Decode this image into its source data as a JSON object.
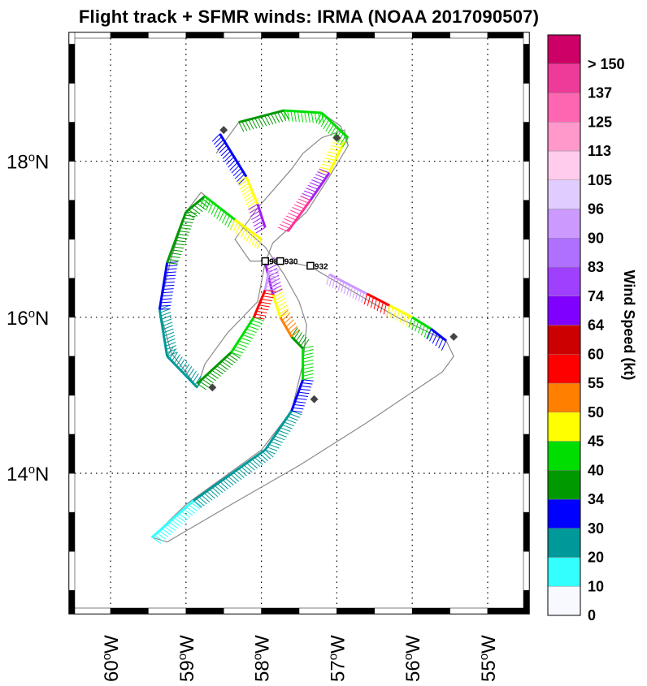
{
  "title": "Flight track + SFMR winds: IRMA (NOAA 2017090507)",
  "map": {
    "lon_range": [
      -60.55,
      -54.45
    ],
    "lat_range": [
      12.2,
      19.65
    ],
    "lat_ticks": [
      {
        "value": 14,
        "label": "14",
        "sup": "o",
        "hem": "N"
      },
      {
        "value": 16,
        "label": "16",
        "sup": "o",
        "hem": "N"
      },
      {
        "value": 18,
        "label": "18",
        "sup": "o",
        "hem": "N"
      }
    ],
    "lon_ticks": [
      {
        "value": -60,
        "label": "60",
        "sup": "o",
        "hem": "W"
      },
      {
        "value": -59,
        "label": "59",
        "sup": "o",
        "hem": "W"
      },
      {
        "value": -58,
        "label": "58",
        "sup": "o",
        "hem": "W"
      },
      {
        "value": -57,
        "label": "57",
        "sup": "o",
        "hem": "W"
      },
      {
        "value": -56,
        "label": "56",
        "sup": "o",
        "hem": "W"
      },
      {
        "value": -55,
        "label": "55",
        "sup": "o",
        "hem": "W"
      }
    ],
    "track_color": "#8a8a8a",
    "track": [
      [
        -59.25,
        13.12
      ],
      [
        -58.4,
        13.6
      ],
      [
        -57.5,
        14.1
      ],
      [
        -56.6,
        14.65
      ],
      [
        -55.6,
        15.3
      ],
      [
        -55.45,
        15.5
      ],
      [
        -55.55,
        15.7
      ],
      [
        -56.2,
        16.0
      ],
      [
        -57.0,
        16.45
      ],
      [
        -57.35,
        16.65
      ],
      [
        -57.7,
        16.72
      ],
      [
        -58.15,
        16.72
      ],
      [
        -58.35,
        17.0
      ],
      [
        -58.05,
        17.4
      ],
      [
        -57.6,
        17.9
      ],
      [
        -57.45,
        18.1
      ],
      [
        -57.2,
        18.3
      ],
      [
        -56.9,
        18.4
      ],
      [
        -56.85,
        18.2
      ],
      [
        -57.1,
        17.8
      ],
      [
        -57.4,
        17.35
      ],
      [
        -57.85,
        16.95
      ],
      [
        -57.95,
        16.7
      ],
      [
        -58.05,
        16.2
      ],
      [
        -58.45,
        15.8
      ],
      [
        -58.75,
        15.4
      ],
      [
        -58.85,
        15.1
      ],
      [
        -59.2,
        15.55
      ],
      [
        -59.35,
        16.1
      ],
      [
        -59.2,
        16.75
      ],
      [
        -59.0,
        17.35
      ],
      [
        -58.8,
        17.6
      ],
      [
        -58.3,
        17.2
      ],
      [
        -57.95,
        16.9
      ],
      [
        -57.7,
        16.55
      ],
      [
        -57.5,
        16.2
      ],
      [
        -57.4,
        15.9
      ],
      [
        -57.45,
        15.4
      ],
      [
        -57.6,
        14.8
      ],
      [
        -58.0,
        14.3
      ],
      [
        -59.0,
        13.6
      ],
      [
        -59.45,
        13.18
      ],
      [
        -59.25,
        13.12
      ]
    ],
    "north_leg": [
      [
        -58.6,
        18.1
      ],
      [
        -58.3,
        18.5
      ],
      [
        -57.7,
        18.65
      ],
      [
        -57.2,
        18.62
      ],
      [
        -56.95,
        18.45
      ],
      [
        -56.85,
        18.2
      ]
    ],
    "segments": [
      {
        "from": [
          -59.45,
          13.18
        ],
        "to": [
          -58.9,
          13.65
        ],
        "color": "#33ffff"
      },
      {
        "from": [
          -58.9,
          13.65
        ],
        "to": [
          -57.95,
          14.3
        ],
        "color": "#009999"
      },
      {
        "from": [
          -57.95,
          14.3
        ],
        "to": [
          -57.6,
          14.8
        ],
        "color": "#009999"
      },
      {
        "from": [
          -57.6,
          14.8
        ],
        "to": [
          -57.45,
          15.2
        ],
        "color": "#0000ff"
      },
      {
        "from": [
          -57.45,
          15.2
        ],
        "to": [
          -57.45,
          15.6
        ],
        "color": "#00dd00"
      },
      {
        "from": [
          -57.45,
          15.6
        ],
        "to": [
          -57.6,
          15.75
        ],
        "color": "#009900"
      },
      {
        "from": [
          -57.6,
          15.75
        ],
        "to": [
          -57.75,
          16.0
        ],
        "color": "#ff8000"
      },
      {
        "from": [
          -57.75,
          16.0
        ],
        "to": [
          -57.85,
          16.3
        ],
        "color": "#ffff00"
      },
      {
        "from": [
          -57.85,
          16.3
        ],
        "to": [
          -57.95,
          16.7
        ],
        "color": "#a020f0"
      },
      {
        "from": [
          -58.85,
          15.1
        ],
        "to": [
          -59.25,
          15.5
        ],
        "color": "#009999"
      },
      {
        "from": [
          -59.25,
          15.5
        ],
        "to": [
          -59.35,
          16.1
        ],
        "color": "#009999"
      },
      {
        "from": [
          -59.35,
          16.1
        ],
        "to": [
          -59.25,
          16.7
        ],
        "color": "#0000ff"
      },
      {
        "from": [
          -59.25,
          16.7
        ],
        "to": [
          -59.0,
          17.35
        ],
        "color": "#009900"
      },
      {
        "from": [
          -59.0,
          17.35
        ],
        "to": [
          -58.75,
          17.55
        ],
        "color": "#009900"
      },
      {
        "from": [
          -58.75,
          17.55
        ],
        "to": [
          -58.35,
          17.25
        ],
        "color": "#00dd00"
      },
      {
        "from": [
          -58.35,
          17.25
        ],
        "to": [
          -58.0,
          17.0
        ],
        "color": "#ffff00"
      },
      {
        "from": [
          -58.85,
          15.15
        ],
        "to": [
          -58.4,
          15.55
        ],
        "color": "#009900"
      },
      {
        "from": [
          -58.4,
          15.55
        ],
        "to": [
          -58.1,
          16.0
        ],
        "color": "#00dd00"
      },
      {
        "from": [
          -58.1,
          16.0
        ],
        "to": [
          -57.95,
          16.35
        ],
        "color": "#ff0000"
      },
      {
        "from": [
          -57.95,
          16.35
        ],
        "to": [
          -57.9,
          16.6
        ],
        "color": "#cc99ff"
      },
      {
        "from": [
          -58.55,
          18.35
        ],
        "to": [
          -58.2,
          17.8
        ],
        "color": "#0000ff"
      },
      {
        "from": [
          -58.2,
          17.8
        ],
        "to": [
          -58.05,
          17.45
        ],
        "color": "#ffff00"
      },
      {
        "from": [
          -58.05,
          17.45
        ],
        "to": [
          -57.95,
          17.15
        ],
        "color": "#a020f0"
      },
      {
        "from": [
          -56.9,
          18.25
        ],
        "to": [
          -57.1,
          17.85
        ],
        "color": "#ffff00"
      },
      {
        "from": [
          -57.1,
          17.85
        ],
        "to": [
          -57.35,
          17.5
        ],
        "color": "#a020f0"
      },
      {
        "from": [
          -57.35,
          17.5
        ],
        "to": [
          -57.65,
          17.1
        ],
        "color": "#ff3399"
      },
      {
        "from": [
          -57.1,
          16.55
        ],
        "to": [
          -56.6,
          16.3
        ],
        "color": "#cc99ff"
      },
      {
        "from": [
          -56.6,
          16.3
        ],
        "to": [
          -56.3,
          16.15
        ],
        "color": "#ff0000"
      },
      {
        "from": [
          -56.3,
          16.15
        ],
        "to": [
          -56.0,
          16.0
        ],
        "color": "#ffff00"
      },
      {
        "from": [
          -56.0,
          16.0
        ],
        "to": [
          -55.75,
          15.85
        ],
        "color": "#00dd00"
      },
      {
        "from": [
          -55.75,
          15.85
        ],
        "to": [
          -55.55,
          15.7
        ],
        "color": "#0000ff"
      },
      {
        "from": [
          -58.3,
          18.5
        ],
        "to": [
          -57.7,
          18.65
        ],
        "color": "#009900"
      },
      {
        "from": [
          -57.7,
          18.65
        ],
        "to": [
          -57.2,
          18.62
        ],
        "color": "#00dd00"
      },
      {
        "from": [
          -57.2,
          18.62
        ],
        "to": [
          -56.85,
          18.3
        ],
        "color": "#00dd00"
      }
    ],
    "waypoints": [
      [
        -58.5,
        18.4
      ],
      [
        -57.0,
        18.3
      ],
      [
        -58.65,
        15.1
      ],
      [
        -57.3,
        14.95
      ],
      [
        -55.45,
        15.75
      ]
    ],
    "center_markers": [
      {
        "lon": -57.95,
        "lat": 16.72,
        "label": "98"
      },
      {
        "lon": -57.75,
        "lat": 16.72,
        "label": "930"
      },
      {
        "lon": -57.35,
        "lat": 16.66,
        "label": "932"
      }
    ]
  },
  "colorbar": {
    "title": "Wind Speed (kt)",
    "bins": [
      {
        "color": "#f8f8ff",
        "label": "0"
      },
      {
        "color": "#33ffff",
        "label": "10"
      },
      {
        "color": "#009999",
        "label": "20"
      },
      {
        "color": "#0000ff",
        "label": "30"
      },
      {
        "color": "#009900",
        "label": "34"
      },
      {
        "color": "#00dd00",
        "label": "40"
      },
      {
        "color": "#ffff00",
        "label": "45"
      },
      {
        "color": "#ff8000",
        "label": "50"
      },
      {
        "color": "#ff0000",
        "label": "55"
      },
      {
        "color": "#cc0000",
        "label": "60"
      },
      {
        "color": "#8000ff",
        "label": "64"
      },
      {
        "color": "#a040ff",
        "label": "74"
      },
      {
        "color": "#b070ff",
        "label": "83"
      },
      {
        "color": "#cc99ff",
        "label": "90"
      },
      {
        "color": "#e0ccff",
        "label": "96"
      },
      {
        "color": "#ffccee",
        "label": "105"
      },
      {
        "color": "#ff99cc",
        "label": "113"
      },
      {
        "color": "#ff66b2",
        "label": "125"
      },
      {
        "color": "#ee3a99",
        "label": "137"
      },
      {
        "color": "#cc0066",
        "label": "> 150"
      }
    ]
  }
}
